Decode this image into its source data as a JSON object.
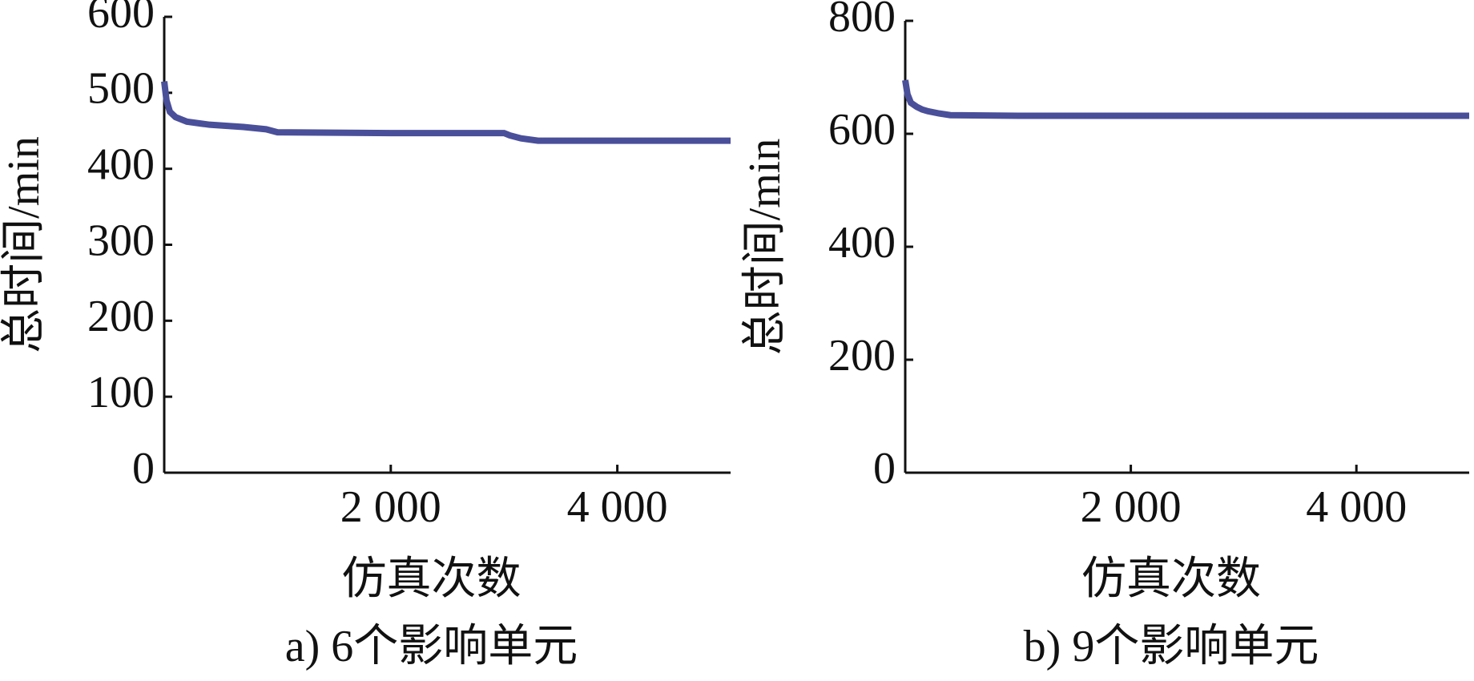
{
  "chart_data": [
    {
      "type": "line",
      "y_label": "总时间/min",
      "x_label": "仿真次数",
      "caption": "a) 6个影响单元",
      "xlim": [
        0,
        5000
      ],
      "xticks": [
        {
          "value": 2000,
          "label": "2 000"
        },
        {
          "value": 4000,
          "label": "4 000"
        }
      ],
      "ylim": [
        0,
        600
      ],
      "yticks": [
        0,
        100,
        200,
        300,
        400,
        500,
        600
      ],
      "x": [
        0,
        20,
        50,
        100,
        200,
        400,
        700,
        900,
        1000,
        2000,
        3000,
        3050,
        3150,
        3300,
        4000,
        5000
      ],
      "series": [
        {
          "color": "#4a4f9a",
          "values": [
            515,
            490,
            475,
            468,
            462,
            458,
            455,
            452,
            448,
            447,
            447,
            444,
            440,
            437,
            437,
            437
          ]
        }
      ]
    },
    {
      "type": "line",
      "y_label": "总时间/min",
      "x_label": "仿真次数",
      "caption": "b) 9个影响单元",
      "xlim": [
        0,
        5000
      ],
      "xticks": [
        {
          "value": 2000,
          "label": "2 000"
        },
        {
          "value": 4000,
          "label": "4 000"
        }
      ],
      "ylim": [
        0,
        800
      ],
      "yticks": [
        0,
        200,
        400,
        600,
        800
      ],
      "x": [
        0,
        20,
        50,
        100,
        150,
        200,
        300,
        400,
        1000,
        3000,
        5000
      ],
      "series": [
        {
          "color": "#4a4f9a",
          "values": [
            695,
            670,
            655,
            648,
            643,
            640,
            636,
            633,
            632,
            632,
            632
          ]
        }
      ]
    }
  ]
}
